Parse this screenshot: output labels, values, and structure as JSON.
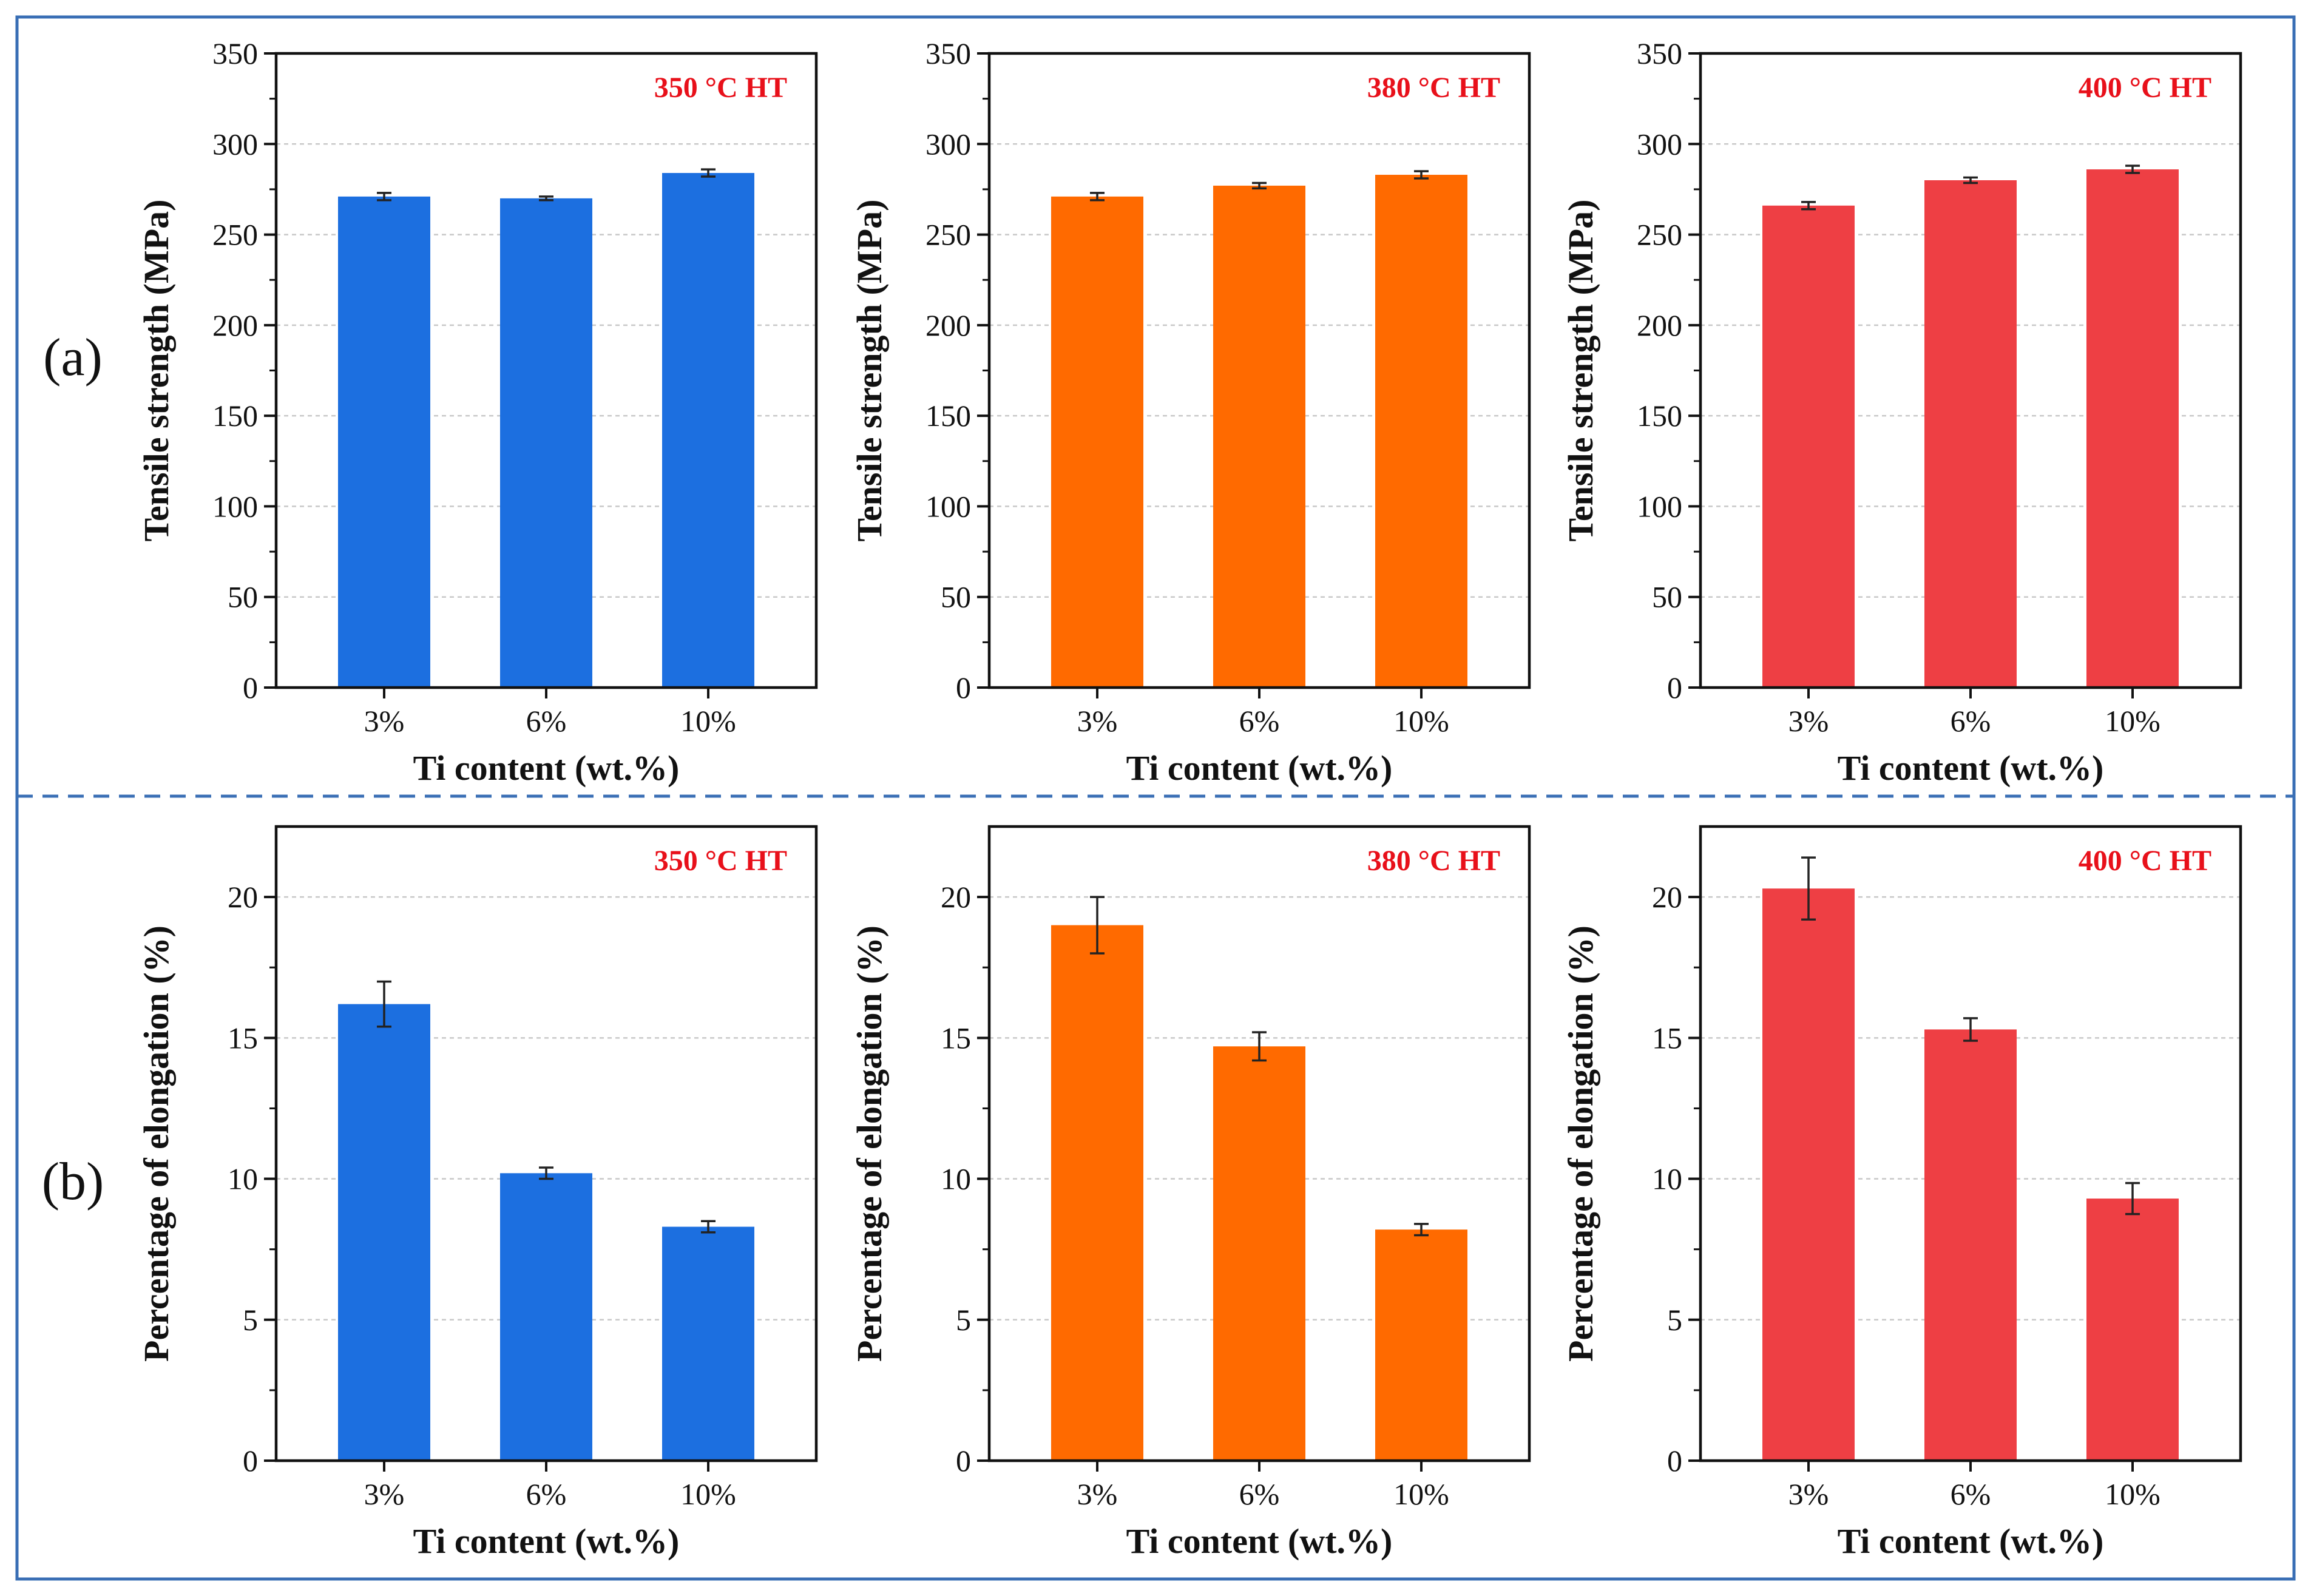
{
  "panel_labels": [
    "(a)",
    "(b)"
  ],
  "colors": {
    "border": "#3a6fb5",
    "divider": "#3a6fb5",
    "grid": "#c8c8c8",
    "temp_label": "#e8101a",
    "series": [
      "#1c6fe0",
      "#ff6a00",
      "#ee3f44"
    ]
  },
  "chart_data": [
    {
      "type": "bar",
      "row": 0,
      "col": 0,
      "temp_label": "350 °C HT",
      "xlabel": "Ti content (wt.%)",
      "ylabel": "Tensile strength (MPa)",
      "categories": [
        "3%",
        "6%",
        "10%"
      ],
      "values": [
        271,
        270,
        284
      ],
      "errors": [
        2,
        1,
        2
      ],
      "ylim": [
        0,
        350
      ],
      "yticks": [
        0,
        50,
        100,
        150,
        200,
        250,
        300,
        350
      ],
      "grid": true
    },
    {
      "type": "bar",
      "row": 0,
      "col": 1,
      "temp_label": "380 °C HT",
      "xlabel": "Ti content (wt.%)",
      "ylabel": "Tensile strength (MPa)",
      "categories": [
        "3%",
        "6%",
        "10%"
      ],
      "values": [
        271,
        277,
        283
      ],
      "errors": [
        2,
        1.5,
        2
      ],
      "ylim": [
        0,
        350
      ],
      "yticks": [
        0,
        50,
        100,
        150,
        200,
        250,
        300,
        350
      ],
      "grid": true
    },
    {
      "type": "bar",
      "row": 0,
      "col": 2,
      "temp_label": "400 °C HT",
      "xlabel": "Ti content (wt.%)",
      "ylabel": "Tensile strength (MPa)",
      "categories": [
        "3%",
        "6%",
        "10%"
      ],
      "values": [
        266,
        280,
        286
      ],
      "errors": [
        2,
        1.5,
        2
      ],
      "ylim": [
        0,
        350
      ],
      "yticks": [
        0,
        50,
        100,
        150,
        200,
        250,
        300,
        350
      ],
      "grid": true
    },
    {
      "type": "bar",
      "row": 1,
      "col": 0,
      "temp_label": "350 °C HT",
      "xlabel": "Ti content (wt.%)",
      "ylabel": "Percentage of elongation (%)",
      "categories": [
        "3%",
        "6%",
        "10%"
      ],
      "values": [
        16.2,
        10.2,
        8.3
      ],
      "errors": [
        0.8,
        0.2,
        0.2
      ],
      "ylim": [
        0,
        22.5
      ],
      "yticks": [
        0,
        5,
        10,
        15,
        20
      ],
      "grid": true
    },
    {
      "type": "bar",
      "row": 1,
      "col": 1,
      "temp_label": "380 °C HT",
      "xlabel": "Ti content (wt.%)",
      "ylabel": "Percentage of elongation (%)",
      "categories": [
        "3%",
        "6%",
        "10%"
      ],
      "values": [
        19.0,
        14.7,
        8.2
      ],
      "errors": [
        1.0,
        0.5,
        0.2
      ],
      "ylim": [
        0,
        22.5
      ],
      "yticks": [
        0,
        5,
        10,
        15,
        20
      ],
      "grid": true
    },
    {
      "type": "bar",
      "row": 1,
      "col": 2,
      "temp_label": "400 °C HT",
      "xlabel": "Ti content (wt.%)",
      "ylabel": "Percentage of elongation (%)",
      "categories": [
        "3%",
        "6%",
        "10%"
      ],
      "values": [
        20.3,
        15.3,
        9.3
      ],
      "errors": [
        1.1,
        0.4,
        0.55
      ],
      "ylim": [
        0,
        22.5
      ],
      "yticks": [
        0,
        5,
        10,
        15,
        20
      ],
      "grid": true
    }
  ]
}
